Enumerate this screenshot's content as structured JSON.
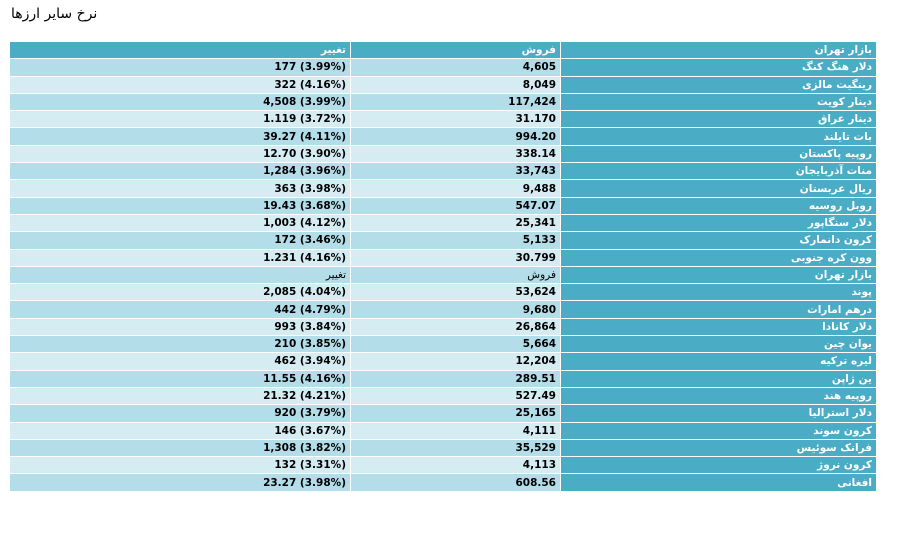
{
  "page": {
    "title": "نرخ سایر ارزها"
  },
  "table": {
    "header": {
      "name": "بازار تهران",
      "sell": "فروش",
      "change": "تغییر"
    },
    "group1": [
      {
        "name": "دلار هنگ کنگ",
        "sell": "4,605",
        "change": "(3.99%) 177"
      },
      {
        "name": "رینگیت مالزی",
        "sell": "8,049",
        "change": "(4.16%) 322"
      },
      {
        "name": "دینار کویت",
        "sell": "117,424",
        "change": "(3.99%) 4,508"
      },
      {
        "name": "دینار عراق",
        "sell": "31.170",
        "change": "(3.72%) 1.119"
      },
      {
        "name": "بات تایلند",
        "sell": "994.20",
        "change": "(4.11%) 39.27"
      },
      {
        "name": "روپیه پاکستان",
        "sell": "338.14",
        "change": "(3.90%) 12.70"
      },
      {
        "name": "منات آذربایجان",
        "sell": "33,743",
        "change": "(3.96%) 1,284"
      },
      {
        "name": "ریال عربستان",
        "sell": "9,488",
        "change": "(3.98%) 363"
      },
      {
        "name": "روبل روسیه",
        "sell": "547.07",
        "change": "(3.68%) 19.43"
      },
      {
        "name": "دلار سنگاپور",
        "sell": "25,341",
        "change": "(4.12%) 1,003"
      },
      {
        "name": "کرون دانمارک",
        "sell": "5,133",
        "change": "(3.46%) 172"
      },
      {
        "name": "وون کره جنوبی",
        "sell": "30.799",
        "change": "(4.16%) 1.231"
      }
    ],
    "subheader": {
      "name": "بازار تهران",
      "sell": "فروش",
      "change": "تغییر"
    },
    "group2": [
      {
        "name": "پوند",
        "sell": "53,624",
        "change": "(4.04%) 2,085"
      },
      {
        "name": "درهم امارات",
        "sell": "9,680",
        "change": "(4.79%) 442"
      },
      {
        "name": "دلار کانادا",
        "sell": "26,864",
        "change": "(3.84%) 993"
      },
      {
        "name": "یوان چین",
        "sell": "5,664",
        "change": "(3.85%) 210"
      },
      {
        "name": "لیره ترکیه",
        "sell": "12,204",
        "change": "(3.94%) 462"
      },
      {
        "name": "ین ژاپن",
        "sell": "289.51",
        "change": "(4.16%) 11.55"
      },
      {
        "name": "روپیه هند",
        "sell": "527.49",
        "change": "(4.21%) 21.32"
      },
      {
        "name": "دلار استرالیا",
        "sell": "25,165",
        "change": "(3.79%) 920"
      },
      {
        "name": "کرون سوند",
        "sell": "4,111",
        "change": "(3.67%) 146"
      },
      {
        "name": "فرانک سوئیس",
        "sell": "35,529",
        "change": "(3.82%) 1,308"
      },
      {
        "name": "کرون نروژ",
        "sell": "4,113",
        "change": "(3.31%) 132"
      },
      {
        "name": "افغانی",
        "sell": "608.56",
        "change": "(3.98%) 23.27"
      }
    ]
  }
}
